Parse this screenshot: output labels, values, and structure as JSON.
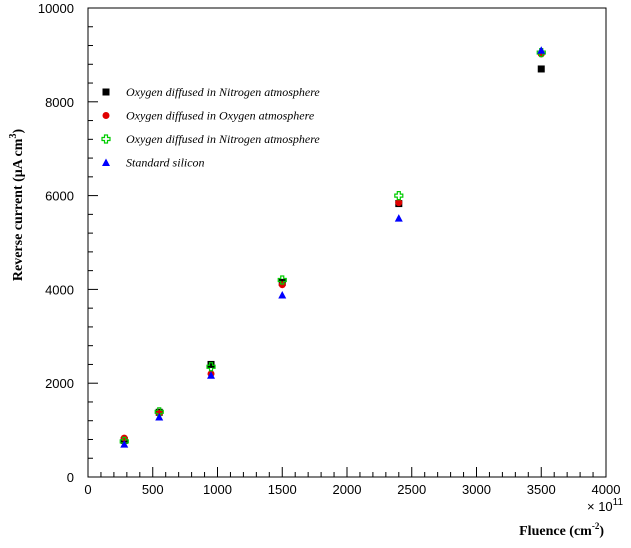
{
  "chart_data": {
    "type": "scatter",
    "xlabel": "Fluence (cm",
    "xlabel_sup": "-2",
    "xlabel_close": ")",
    "x_multiplier_text": "× 10",
    "x_multiplier_exp": "11",
    "ylabel": "Reverse current (μA cm",
    "ylabel_sup": "3",
    "ylabel_close": ")",
    "xlim": [
      0,
      4000
    ],
    "ylim": [
      0,
      10000
    ],
    "x_ticks": [
      0,
      500,
      1000,
      1500,
      2000,
      2500,
      3000,
      3500,
      4000
    ],
    "y_ticks": [
      0,
      2000,
      4000,
      6000,
      8000,
      10000
    ],
    "grid": false,
    "legend_position": "top-left",
    "series": [
      {
        "name": "Oxygen diffused in Nitrogen atmosphere",
        "marker": "square",
        "color": "#000000",
        "x": [
          280,
          550,
          950,
          1500,
          2400,
          3500
        ],
        "y": [
          780,
          1380,
          2400,
          4150,
          5830,
          8700
        ]
      },
      {
        "name": "Oxygen diffused in Oxygen atmosphere",
        "marker": "circle",
        "color": "#e00000",
        "x": [
          280,
          550,
          950,
          1500,
          2400,
          3500
        ],
        "y": [
          830,
          1360,
          2200,
          4100,
          5850,
          9020
        ]
      },
      {
        "name": "Oxygen diffused in Nitrogen atmosphere",
        "marker": "cross",
        "color": "#00cc00",
        "x": [
          280,
          550,
          950,
          1500,
          2400,
          3500
        ],
        "y": [
          760,
          1390,
          2350,
          4200,
          6000,
          9050
        ]
      },
      {
        "name": "Standard silicon",
        "marker": "triangle",
        "color": "#0000ff",
        "x": [
          280,
          550,
          950,
          1500,
          2400,
          3500
        ],
        "y": [
          700,
          1280,
          2170,
          3880,
          5520,
          9100
        ]
      }
    ]
  }
}
